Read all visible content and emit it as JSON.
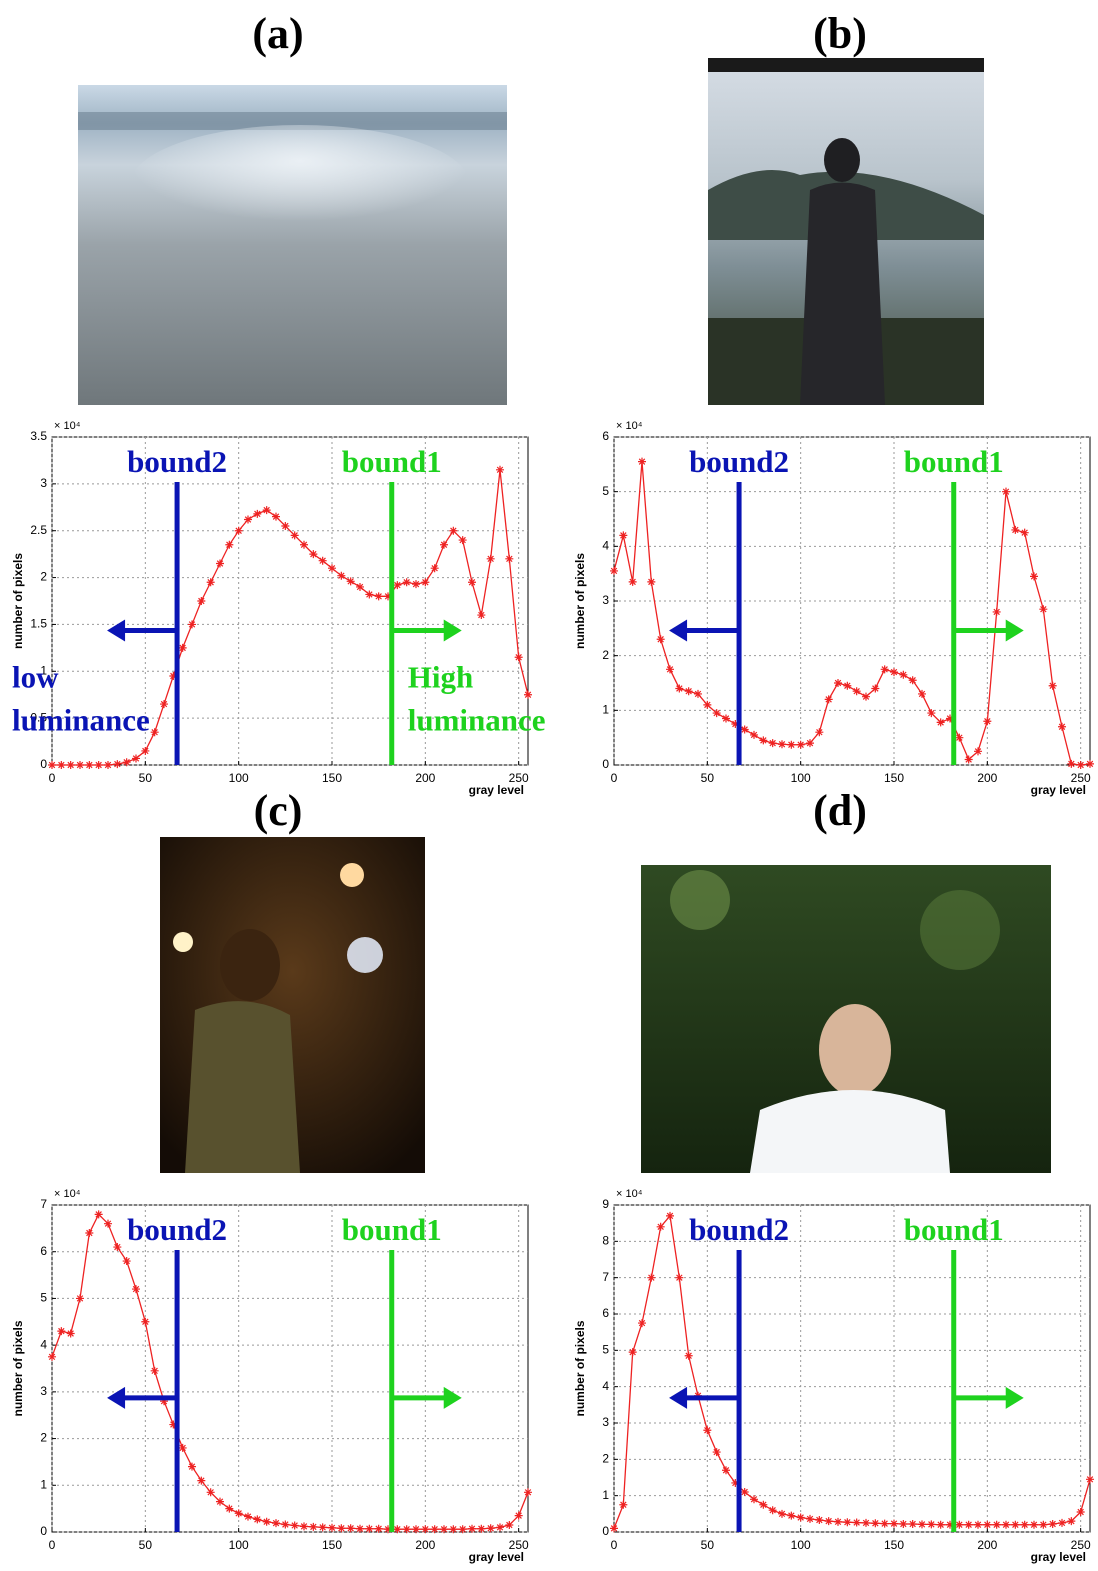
{
  "chart_data": [
    {
      "type": "line",
      "panel_label": "(a)",
      "y_scale_label": "× 10⁴",
      "y_label": "number of pixels",
      "x_label": "gray level",
      "xlim": [
        0,
        255
      ],
      "xticks": [
        0,
        50,
        100,
        150,
        200,
        250
      ],
      "ylim": [
        0,
        3.5
      ],
      "yticks": [
        0,
        0.5,
        1,
        1.5,
        2,
        2.5,
        3,
        3.5
      ],
      "grid": true,
      "x": [
        0,
        5,
        10,
        15,
        20,
        25,
        30,
        35,
        40,
        45,
        50,
        55,
        60,
        65,
        70,
        75,
        80,
        85,
        90,
        95,
        100,
        105,
        110,
        115,
        120,
        125,
        130,
        135,
        140,
        145,
        150,
        155,
        160,
        165,
        170,
        175,
        180,
        185,
        190,
        195,
        200,
        205,
        210,
        215,
        220,
        225,
        230,
        235,
        240,
        245,
        250,
        255
      ],
      "color": "#ee2222",
      "values": [
        0,
        0,
        0,
        0,
        0,
        0,
        0,
        0.01,
        0.03,
        0.07,
        0.15,
        0.35,
        0.65,
        0.95,
        1.25,
        1.5,
        1.75,
        1.95,
        2.15,
        2.35,
        2.5,
        2.62,
        2.68,
        2.72,
        2.65,
        2.55,
        2.45,
        2.35,
        2.25,
        2.18,
        2.1,
        2.02,
        1.96,
        1.9,
        1.82,
        1.8,
        1.8,
        1.92,
        1.95,
        1.93,
        1.95,
        2.1,
        2.35,
        2.5,
        2.4,
        1.95,
        1.6,
        2.2,
        3.15,
        2.2,
        1.15,
        0.75
      ],
      "bounds": [
        {
          "label": "bound2",
          "x": 67,
          "color": "#0a14b4"
        },
        {
          "label": "bound1",
          "x": 182,
          "color": "#1ed21e"
        }
      ],
      "region_labels": [
        [
          "low",
          "luminance"
        ],
        [
          "High",
          "luminance"
        ]
      ]
    },
    {
      "type": "line",
      "panel_label": "(b)",
      "y_scale_label": "× 10⁴",
      "y_label": "number of pixels",
      "x_label": "gray level",
      "xlim": [
        0,
        255
      ],
      "xticks": [
        0,
        50,
        100,
        150,
        200,
        250
      ],
      "ylim": [
        0,
        6
      ],
      "yticks": [
        0,
        1,
        2,
        3,
        4,
        5,
        6
      ],
      "grid": true,
      "x": [
        0,
        5,
        10,
        15,
        20,
        25,
        30,
        35,
        40,
        45,
        50,
        55,
        60,
        65,
        70,
        75,
        80,
        85,
        90,
        95,
        100,
        105,
        110,
        115,
        120,
        125,
        130,
        135,
        140,
        145,
        150,
        155,
        160,
        165,
        170,
        175,
        180,
        185,
        190,
        195,
        200,
        205,
        210,
        215,
        220,
        225,
        230,
        235,
        240,
        245,
        250,
        255
      ],
      "color": "#ee2222",
      "values": [
        3.55,
        4.2,
        3.35,
        5.55,
        3.35,
        2.3,
        1.75,
        1.4,
        1.35,
        1.3,
        1.1,
        0.95,
        0.85,
        0.75,
        0.65,
        0.55,
        0.45,
        0.4,
        0.38,
        0.37,
        0.37,
        0.4,
        0.6,
        1.2,
        1.5,
        1.45,
        1.35,
        1.25,
        1.4,
        1.75,
        1.7,
        1.65,
        1.55,
        1.3,
        0.95,
        0.78,
        0.85,
        0.5,
        0.1,
        0.25,
        0.8,
        2.8,
        5.0,
        4.3,
        4.25,
        3.45,
        2.85,
        1.45,
        0.7,
        0.02,
        0,
        0.02
      ],
      "bounds": [
        {
          "label": "bound2",
          "x": 67,
          "color": "#0a14b4"
        },
        {
          "label": "bound1",
          "x": 182,
          "color": "#1ed21e"
        }
      ]
    },
    {
      "type": "line",
      "panel_label": "(c)",
      "y_scale_label": "× 10⁴",
      "y_label": "number of pixels",
      "x_label": "gray level",
      "xlim": [
        0,
        255
      ],
      "xticks": [
        0,
        50,
        100,
        150,
        200,
        250
      ],
      "ylim": [
        0,
        7
      ],
      "yticks": [
        0,
        1,
        2,
        3,
        4,
        5,
        6,
        7
      ],
      "grid": true,
      "x": [
        0,
        5,
        10,
        15,
        20,
        25,
        30,
        35,
        40,
        45,
        50,
        55,
        60,
        65,
        70,
        75,
        80,
        85,
        90,
        95,
        100,
        105,
        110,
        115,
        120,
        125,
        130,
        135,
        140,
        145,
        150,
        155,
        160,
        165,
        170,
        175,
        180,
        185,
        190,
        195,
        200,
        205,
        210,
        215,
        220,
        225,
        230,
        235,
        240,
        245,
        250,
        255
      ],
      "color": "#ee2222",
      "values": [
        3.75,
        4.3,
        4.25,
        5.0,
        6.4,
        6.8,
        6.6,
        6.1,
        5.8,
        5.2,
        4.5,
        3.45,
        2.8,
        2.3,
        1.8,
        1.4,
        1.1,
        0.85,
        0.65,
        0.5,
        0.4,
        0.33,
        0.27,
        0.22,
        0.19,
        0.16,
        0.14,
        0.12,
        0.11,
        0.1,
        0.09,
        0.08,
        0.08,
        0.07,
        0.07,
        0.07,
        0.06,
        0.06,
        0.06,
        0.06,
        0.06,
        0.06,
        0.06,
        0.06,
        0.06,
        0.07,
        0.07,
        0.08,
        0.1,
        0.15,
        0.35,
        0.85
      ],
      "bounds": [
        {
          "label": "bound2",
          "x": 67,
          "color": "#0a14b4"
        },
        {
          "label": "bound1",
          "x": 182,
          "color": "#1ed21e"
        }
      ]
    },
    {
      "type": "line",
      "panel_label": "(d)",
      "y_scale_label": "× 10⁴",
      "y_label": "number of pixels",
      "x_label": "gray level",
      "xlim": [
        0,
        255
      ],
      "xticks": [
        0,
        50,
        100,
        150,
        200,
        250
      ],
      "ylim": [
        0,
        9
      ],
      "yticks": [
        0,
        1,
        2,
        3,
        4,
        5,
        6,
        7,
        8,
        9
      ],
      "grid": true,
      "x": [
        0,
        5,
        10,
        15,
        20,
        25,
        30,
        35,
        40,
        45,
        50,
        55,
        60,
        65,
        70,
        75,
        80,
        85,
        90,
        95,
        100,
        105,
        110,
        115,
        120,
        125,
        130,
        135,
        140,
        145,
        150,
        155,
        160,
        165,
        170,
        175,
        180,
        185,
        190,
        195,
        200,
        205,
        210,
        215,
        220,
        225,
        230,
        235,
        240,
        245,
        250,
        255
      ],
      "color": "#ee2222",
      "values": [
        0.1,
        0.75,
        4.95,
        5.75,
        7.0,
        8.4,
        8.7,
        7.0,
        4.85,
        3.75,
        2.8,
        2.2,
        1.7,
        1.35,
        1.1,
        0.9,
        0.75,
        0.6,
        0.5,
        0.45,
        0.4,
        0.36,
        0.33,
        0.3,
        0.28,
        0.27,
        0.26,
        0.25,
        0.24,
        0.23,
        0.23,
        0.22,
        0.22,
        0.21,
        0.21,
        0.2,
        0.2,
        0.2,
        0.2,
        0.2,
        0.2,
        0.2,
        0.2,
        0.2,
        0.2,
        0.2,
        0.2,
        0.22,
        0.25,
        0.3,
        0.55,
        1.45
      ],
      "bounds": [
        {
          "label": "bound2",
          "x": 67,
          "color": "#0a14b4"
        },
        {
          "label": "bound1",
          "x": 182,
          "color": "#1ed21e"
        }
      ]
    }
  ]
}
